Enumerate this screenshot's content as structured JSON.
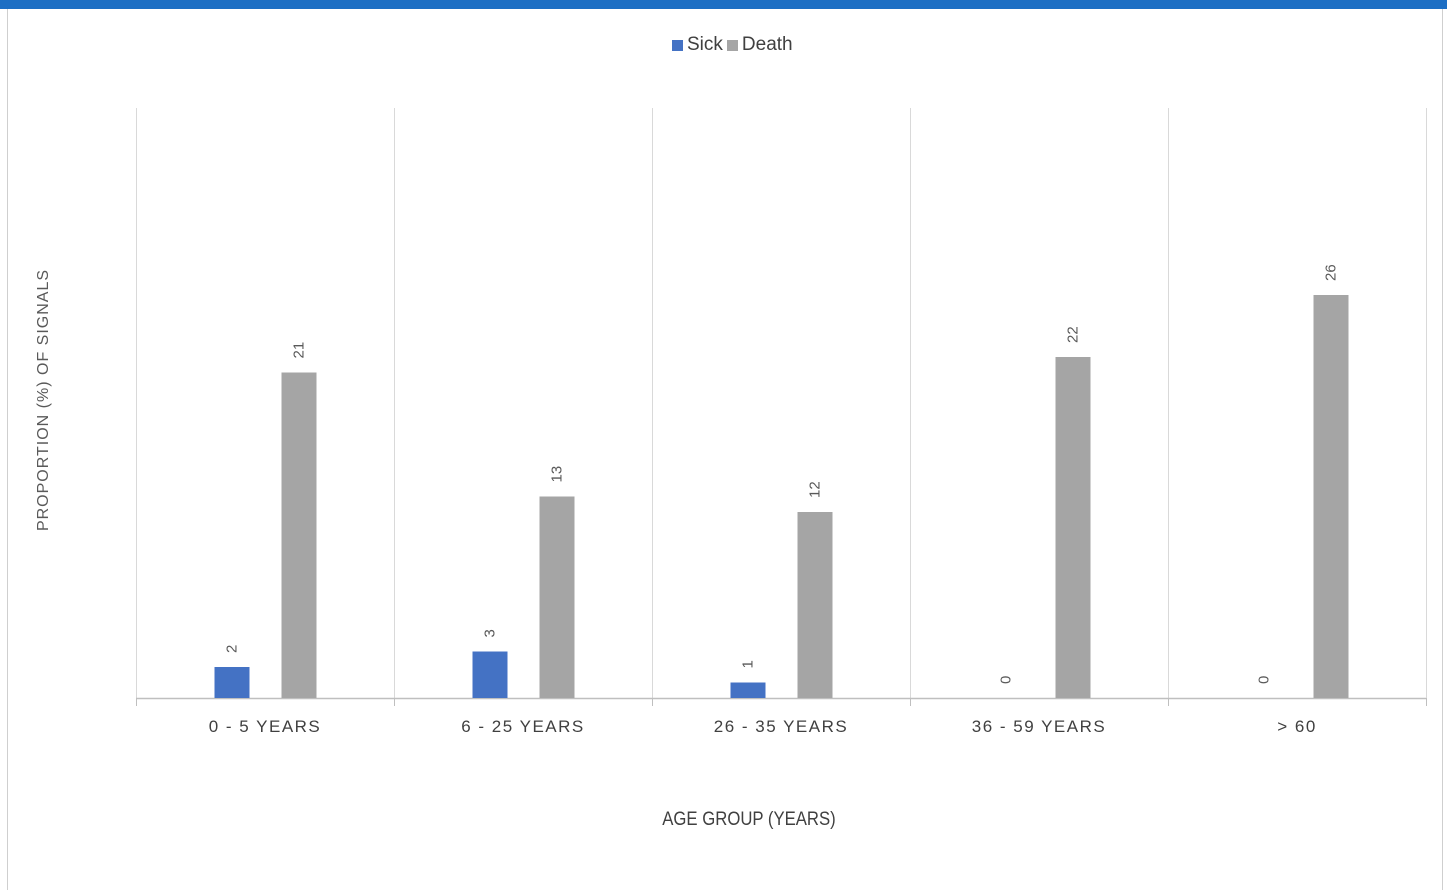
{
  "chart_data": {
    "type": "bar",
    "categories": [
      "0 - 5 YEARS",
      "6 - 25 YEARS",
      "26 - 35 YEARS",
      "36 - 59 YEARS",
      "> 60"
    ],
    "series": [
      {
        "name": "Sick",
        "values": [
          2,
          3,
          1,
          0,
          0
        ],
        "color": "#4472c4"
      },
      {
        "name": "Death",
        "values": [
          21,
          13,
          12,
          22,
          26
        ],
        "color": "#a5a5a5"
      }
    ],
    "xlabel": "AGE GROUP  (YEARS)",
    "ylabel": "PROPORTION (%) OF SIGNALS",
    "ylim": [
      0,
      30
    ],
    "legend_position": "top-center",
    "grid": "vertical category separators",
    "data_labels": true
  }
}
